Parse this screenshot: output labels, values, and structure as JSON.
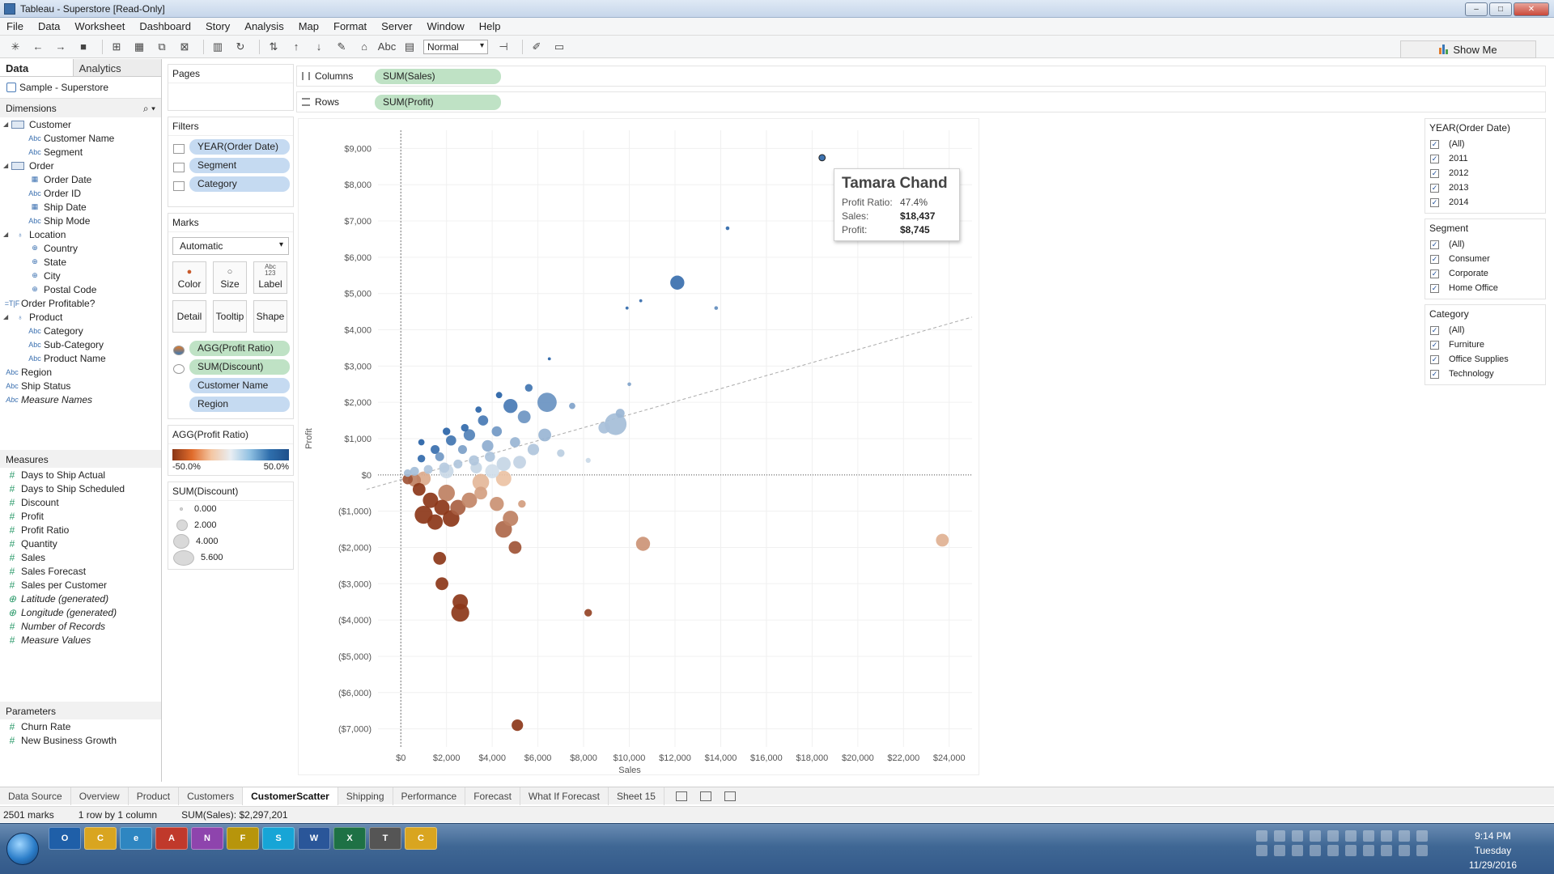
{
  "window": {
    "title": "Tableau - Superstore [Read-Only]",
    "min": "–",
    "max": "□",
    "close": "✕"
  },
  "menu": [
    "File",
    "Data",
    "Worksheet",
    "Dashboard",
    "Story",
    "Analysis",
    "Map",
    "Format",
    "Server",
    "Window",
    "Help"
  ],
  "toolbar": {
    "fit_value": "Normal",
    "label_tool": "Abc",
    "show_me": "Show Me"
  },
  "data_pane": {
    "tab_data": "Data",
    "tab_analytics": "Analytics",
    "datasource": "Sample - Superstore",
    "dimensions_header": "Dimensions",
    "measures_header": "Measures",
    "parameters_header": "Parameters",
    "dimensions": [
      {
        "label": "Customer",
        "type": "folder",
        "level": 0
      },
      {
        "label": "Customer Name",
        "type": "Abc",
        "level": 1
      },
      {
        "label": "Segment",
        "type": "Abc",
        "level": 1
      },
      {
        "label": "Order",
        "type": "folder",
        "level": 0
      },
      {
        "label": "Order Date",
        "type": "date",
        "level": 1
      },
      {
        "label": "Order ID",
        "type": "Abc",
        "level": 1
      },
      {
        "label": "Ship Date",
        "type": "date",
        "level": 1
      },
      {
        "label": "Ship Mode",
        "type": "Abc",
        "level": 1
      },
      {
        "label": "Location",
        "type": "hier",
        "level": 0
      },
      {
        "label": "Country",
        "type": "geo",
        "level": 1
      },
      {
        "label": "State",
        "type": "geo",
        "level": 1
      },
      {
        "label": "City",
        "type": "geo",
        "level": 1
      },
      {
        "label": "Postal Code",
        "type": "geo",
        "level": 1
      },
      {
        "label": "Order Profitable?",
        "type": "tf",
        "level": 0
      },
      {
        "label": "Product",
        "type": "hier",
        "level": 0
      },
      {
        "label": "Category",
        "type": "Abc",
        "level": 1
      },
      {
        "label": "Sub-Category",
        "type": "Abc",
        "level": 1
      },
      {
        "label": "Product Name",
        "type": "Abc",
        "level": 1
      },
      {
        "label": "Region",
        "type": "Abc",
        "level": 0
      },
      {
        "label": "Ship Status",
        "type": "Abc",
        "level": 0
      },
      {
        "label": "Measure Names",
        "type": "Abc",
        "level": 0,
        "italic": true
      }
    ],
    "measures": [
      {
        "label": "Days to Ship Actual"
      },
      {
        "label": "Days to Ship Scheduled"
      },
      {
        "label": "Discount"
      },
      {
        "label": "Profit"
      },
      {
        "label": "Profit Ratio"
      },
      {
        "label": "Quantity"
      },
      {
        "label": "Sales"
      },
      {
        "label": "Sales Forecast"
      },
      {
        "label": "Sales per Customer"
      },
      {
        "label": "Latitude (generated)",
        "italic": true,
        "geo": true
      },
      {
        "label": "Longitude (generated)",
        "italic": true,
        "geo": true
      },
      {
        "label": "Number of Records",
        "italic": true
      },
      {
        "label": "Measure Values",
        "italic": true
      }
    ],
    "parameters": [
      {
        "label": "Churn Rate"
      },
      {
        "label": "New Business Growth"
      }
    ]
  },
  "cards": {
    "pages_title": "Pages",
    "filters_title": "Filters",
    "filters": [
      "YEAR(Order Date)",
      "Segment",
      "Category"
    ],
    "marks_title": "Marks",
    "marks_type": "Automatic",
    "mark_buttons": [
      {
        "label": "Color",
        "glyph": "●"
      },
      {
        "label": "Size",
        "glyph": "○"
      },
      {
        "label": "Label",
        "glyph": "Abc\n123"
      },
      {
        "label": "Detail"
      },
      {
        "label": "Tooltip"
      },
      {
        "label": "Shape"
      }
    ],
    "mark_pills": [
      {
        "label": "AGG(Profit Ratio)",
        "color": "green",
        "icon": "color"
      },
      {
        "label": "SUM(Discount)",
        "color": "green",
        "icon": "size"
      },
      {
        "label": "Customer Name",
        "color": "blue",
        "icon": ""
      },
      {
        "label": "Region",
        "color": "blue",
        "icon": ""
      }
    ],
    "color_legend_title": "AGG(Profit Ratio)",
    "color_legend_min": "-50.0%",
    "color_legend_max": "50.0%",
    "size_legend_title": "SUM(Discount)",
    "size_legend": [
      "0.000",
      "2.000",
      "4.000",
      "5.600"
    ]
  },
  "shelves": {
    "columns_label": "Columns",
    "columns_pill": "SUM(Sales)",
    "rows_label": "Rows",
    "rows_pill": "SUM(Profit)"
  },
  "tooltip": {
    "name": "Tamara Chand",
    "rows": [
      {
        "k": "Profit Ratio:",
        "v": "47.4%"
      },
      {
        "k": "Sales:",
        "v": "$18,437"
      },
      {
        "k": "Profit:",
        "v": "$8,745"
      }
    ]
  },
  "filter_cards": [
    {
      "title": "YEAR(Order Date)",
      "items": [
        "(All)",
        "2011",
        "2012",
        "2013",
        "2014"
      ]
    },
    {
      "title": "Segment",
      "items": [
        "(All)",
        "Consumer",
        "Corporate",
        "Home Office"
      ]
    },
    {
      "title": "Category",
      "items": [
        "(All)",
        "Furniture",
        "Office Supplies",
        "Technology"
      ]
    }
  ],
  "sheet_tabs": [
    "Data Source",
    "Overview",
    "Product",
    "Customers",
    "CustomerScatter",
    "Shipping",
    "Performance",
    "Forecast",
    "What If Forecast",
    "Sheet 15"
  ],
  "active_sheet": "CustomerScatter",
  "status": {
    "marks": "2501 marks",
    "dims": "1 row by 1 column",
    "sum": "SUM(Sales): $2,297,201"
  },
  "clock": {
    "time": "9:14 PM",
    "day": "Tuesday",
    "date": "11/29/2016"
  },
  "taskbar_apps": [
    "O",
    "C",
    "e",
    "A",
    "N",
    "F",
    "S",
    "W",
    "X",
    "T",
    "C"
  ],
  "colors": {
    "accent": "#3a78b6",
    "negative": "#b4501e",
    "positive": "#2e6aa7"
  },
  "chart_data": {
    "type": "scatter",
    "title": "",
    "xlabel": "Sales",
    "ylabel": "Profit",
    "xlim": [
      -1000,
      25000
    ],
    "ylim": [
      -7500,
      9500
    ],
    "x_ticks": [
      0,
      2000,
      4000,
      6000,
      8000,
      10000,
      12000,
      14000,
      16000,
      18000,
      20000,
      22000,
      24000
    ],
    "x_tick_labels": [
      "$0",
      "$2,000",
      "$4,000",
      "$6,000",
      "$8,000",
      "$10,000",
      "$12,000",
      "$14,000",
      "$16,000",
      "$18,000",
      "$20,000",
      "$22,000",
      "$24,000"
    ],
    "y_ticks": [
      9000,
      8000,
      7000,
      6000,
      5000,
      4000,
      3000,
      2000,
      1000,
      0,
      -1000,
      -2000,
      -3000,
      -4000,
      -5000,
      -6000,
      -7000
    ],
    "y_tick_labels": [
      "$9,000",
      "$8,000",
      "$7,000",
      "$6,000",
      "$5,000",
      "$4,000",
      "$3,000",
      "$2,000",
      "$1,000",
      "$0",
      "($1,000)",
      "($2,000)",
      "($3,000)",
      "($4,000)",
      "($5,000)",
      "($6,000)",
      "($7,000)"
    ],
    "trend_line": {
      "x": [
        -1500,
        25000
      ],
      "y": [
        -400,
        4350
      ]
    },
    "points": [
      [
        18437,
        8745,
        0.47,
        0.3
      ],
      [
        14300,
        6800,
        0.47,
        0.1
      ],
      [
        12100,
        5300,
        0.44,
        0.9
      ],
      [
        13800,
        4600,
        0.33,
        0.1
      ],
      [
        10500,
        4800,
        0.45,
        0.05
      ],
      [
        9900,
        4600,
        0.46,
        0.05
      ],
      [
        6500,
        3200,
        0.49,
        0.05
      ],
      [
        10000,
        2500,
        0.25,
        0.1
      ],
      [
        5600,
        2400,
        0.42,
        0.4
      ],
      [
        6400,
        2000,
        0.31,
        1.3
      ],
      [
        7500,
        1900,
        0.25,
        0.3
      ],
      [
        9600,
        1700,
        0.18,
        0.5
      ],
      [
        9400,
        1400,
        0.15,
        1.5
      ],
      [
        8900,
        1300,
        0.14,
        0.7
      ],
      [
        6300,
        1100,
        0.18,
        0.8
      ],
      [
        5400,
        1600,
        0.3,
        0.8
      ],
      [
        4800,
        1900,
        0.4,
        0.9
      ],
      [
        3600,
        1500,
        0.4,
        0.6
      ],
      [
        3000,
        1100,
        0.37,
        0.7
      ],
      [
        2200,
        950,
        0.42,
        0.6
      ],
      [
        1500,
        700,
        0.44,
        0.5
      ],
      [
        900,
        450,
        0.46,
        0.4
      ],
      [
        4200,
        1200,
        0.29,
        0.6
      ],
      [
        3800,
        800,
        0.21,
        0.7
      ],
      [
        5000,
        900,
        0.18,
        0.6
      ],
      [
        5800,
        700,
        0.12,
        0.7
      ],
      [
        7000,
        600,
        0.09,
        0.4
      ],
      [
        8200,
        400,
        0.05,
        0.2
      ],
      [
        4500,
        300,
        0.06,
        0.9
      ],
      [
        4000,
        100,
        0.03,
        0.9
      ],
      [
        3300,
        200,
        0.06,
        0.7
      ],
      [
        2500,
        300,
        0.12,
        0.5
      ],
      [
        1900,
        200,
        0.1,
        0.6
      ],
      [
        1200,
        150,
        0.12,
        0.5
      ],
      [
        600,
        100,
        0.15,
        0.5
      ],
      [
        300,
        50,
        0.15,
        0.4
      ],
      [
        1700,
        500,
        0.29,
        0.5
      ],
      [
        2700,
        700,
        0.26,
        0.5
      ],
      [
        3200,
        400,
        0.12,
        0.6
      ],
      [
        2000,
        100,
        0.05,
        0.9
      ],
      [
        1000,
        -100,
        -0.1,
        0.9
      ],
      [
        600,
        -150,
        -0.25,
        0.8
      ],
      [
        300,
        -120,
        -0.4,
        0.6
      ],
      [
        800,
        -400,
        -0.5,
        0.8
      ],
      [
        1300,
        -700,
        -0.5,
        1.0
      ],
      [
        1800,
        -900,
        -0.5,
        1.0
      ],
      [
        2200,
        -1200,
        -0.5,
        1.1
      ],
      [
        1500,
        -1300,
        -0.5,
        1.0
      ],
      [
        2500,
        -900,
        -0.36,
        1.0
      ],
      [
        3000,
        -700,
        -0.23,
        1.0
      ],
      [
        3500,
        -500,
        -0.14,
        0.8
      ],
      [
        4200,
        -800,
        -0.19,
        0.9
      ],
      [
        4800,
        -1200,
        -0.25,
        1.0
      ],
      [
        4500,
        -1500,
        -0.33,
        1.1
      ],
      [
        5000,
        -2000,
        -0.4,
        0.8
      ],
      [
        5300,
        -800,
        -0.15,
        0.4
      ],
      [
        1700,
        -2300,
        -0.5,
        0.8
      ],
      [
        1800,
        -3000,
        -0.5,
        0.8
      ],
      [
        2600,
        -3500,
        -0.5,
        1.0
      ],
      [
        2600,
        -3800,
        -0.5,
        1.2
      ],
      [
        8200,
        -3800,
        -0.46,
        0.4
      ],
      [
        10600,
        -1900,
        -0.18,
        0.9
      ],
      [
        23700,
        -1800,
        -0.08,
        0.8
      ],
      [
        5100,
        -6900,
        -0.5,
        0.7
      ],
      [
        1000,
        -1100,
        -0.5,
        1.2
      ],
      [
        2000,
        -500,
        -0.25,
        1.1
      ],
      [
        3500,
        -200,
        -0.06,
        1.1
      ],
      [
        4500,
        -100,
        -0.02,
        1.0
      ],
      [
        3900,
        500,
        0.13,
        0.6
      ],
      [
        5200,
        350,
        0.07,
        0.8
      ],
      [
        2800,
        1300,
        0.46,
        0.4
      ],
      [
        3400,
        1800,
        0.48,
        0.3
      ],
      [
        2000,
        1200,
        0.48,
        0.4
      ],
      [
        900,
        900,
        0.49,
        0.3
      ],
      [
        4300,
        2200,
        0.49,
        0.3
      ]
    ]
  }
}
